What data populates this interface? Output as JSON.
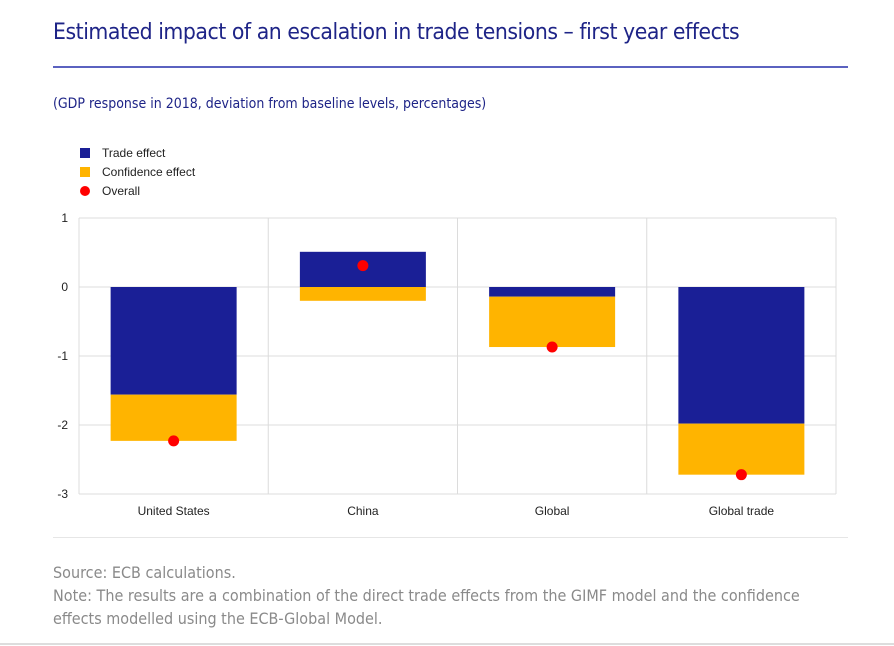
{
  "header": {
    "title": "Estimated impact of an escalation in trade tensions – first year effects",
    "subtitle": "(GDP response in 2018, deviation from baseline levels, percentages)"
  },
  "footer": {
    "source": "Source: ECB calculations.",
    "note": "Note: The results are a combination of the direct trade effects from the GIMF model and the confidence effects modelled using the ECB-Global Model."
  },
  "colors": {
    "trade": "#1a1f96",
    "confidence": "#ffb400",
    "overall": "#ff0000",
    "title": "#1e2487"
  },
  "chart_data": {
    "type": "bar",
    "stacked": true,
    "title": "Estimated impact of an escalation in trade tensions – first year effects",
    "subtitle": "(GDP response in 2018, deviation from baseline levels, percentages)",
    "categories": [
      "United States",
      "China",
      "Global",
      "Global trade"
    ],
    "series": [
      {
        "name": "Trade effect",
        "kind": "bar",
        "values": [
          -1.56,
          0.51,
          -0.14,
          -1.98
        ]
      },
      {
        "name": "Confidence effect",
        "kind": "bar",
        "values": [
          -0.67,
          -0.2,
          -0.73,
          -0.74
        ]
      },
      {
        "name": "Overall",
        "kind": "scatter",
        "values": [
          -2.23,
          0.31,
          -0.87,
          -2.72
        ]
      }
    ],
    "yticks": [
      1,
      0,
      -1,
      -2,
      -3
    ],
    "ylim": [
      -3,
      1
    ],
    "xlabel": "",
    "ylabel": "",
    "grid": true,
    "legend": "top-left"
  }
}
